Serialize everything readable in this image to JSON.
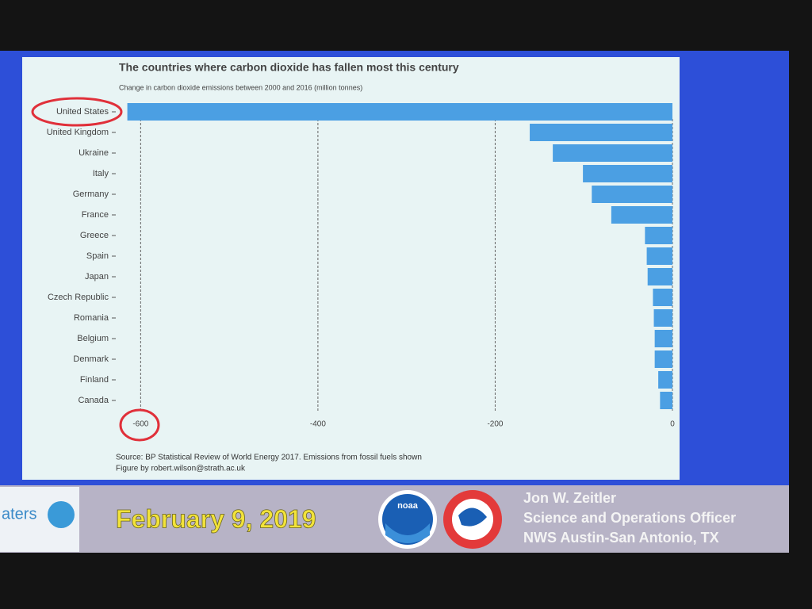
{
  "chart_data": {
    "type": "bar",
    "orientation": "horizontal",
    "title": "The countries where carbon dioxide has fallen most this century",
    "subtitle": "Change in carbon dioxide emissions between 2000 and 2016 (million tonnes)",
    "categories": [
      "United States",
      "United Kingdom",
      "Ukraine",
      "Italy",
      "Germany",
      "France",
      "Greece",
      "Spain",
      "Japan",
      "Czech Republic",
      "Romania",
      "Belgium",
      "Denmark",
      "Finland",
      "Canada"
    ],
    "values": [
      -615,
      -161,
      -135,
      -101,
      -91,
      -69,
      -31,
      -29,
      -28,
      -22,
      -21,
      -20,
      -20,
      -16,
      -14
    ],
    "color": "#4b9fe3",
    "xlim": [
      -620,
      0
    ],
    "xticks": [
      -600,
      -400,
      -200,
      0
    ],
    "grid": true,
    "source": "Source: BP Statistical Review of World Energy 2017. Emissions from fossil fuels shown",
    "credit": "Figure by robert.wilson@strath.ac.uk"
  },
  "footer": {
    "date": "February 9, 2019",
    "name": "Jon W. Zeitler",
    "position": "Science and Operations Officer",
    "office": "NWS Austin-San Antonio, TX",
    "logo_text": "noaa",
    "partner_logo_text": "aters"
  }
}
